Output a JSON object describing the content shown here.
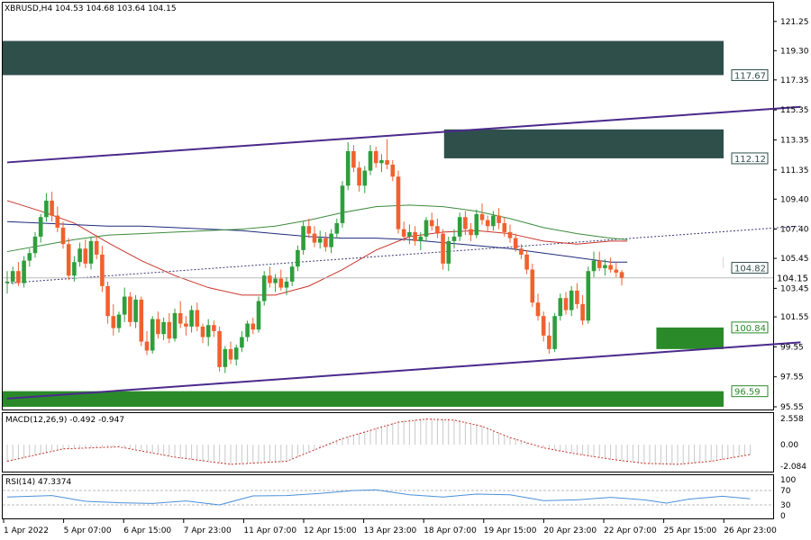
{
  "header": {
    "symbol_line": "XBRUSD,H4  104.53 104.68 103.64 104.15"
  },
  "macd": {
    "label": "MACD(12,26,9) -0.492 -0.947",
    "ticks": [
      "2.558",
      "0.00",
      "-2.084"
    ]
  },
  "rsi": {
    "label": "RSI(14) 47.3374",
    "ticks": [
      "100",
      "70",
      "30",
      "0"
    ]
  },
  "colors": {
    "up": "#2e9e3c",
    "down": "#f0612f",
    "supply_zone": "#2f4f4b",
    "demand_zone": "#2a8a2a",
    "channel": "#4b2a8c",
    "ma_red": "#c8352b",
    "ma_blue": "#1f2a7a",
    "ma_green": "#3c8a3c",
    "rsi_line": "#4a90d9"
  },
  "chart_data": {
    "type": "candlestick",
    "symbol": "XBRUSD",
    "timeframe": "H4",
    "ylim": [
      95.55,
      122.2
    ],
    "y_ticks": [
      "121.25",
      "119.30",
      "117.35",
      "115.35",
      "113.35",
      "111.35",
      "109.40",
      "107.40",
      "105.45",
      "103.45",
      "101.55",
      "99.55",
      "97.55",
      "95.55"
    ],
    "x_ticks": [
      "1 Apr 2022",
      "5 Apr 07:00",
      "6 Apr 15:00",
      "7 Apr 23:00",
      "11 Apr 07:00",
      "12 Apr 15:00",
      "13 Apr 23:00",
      "18 Apr 07:00",
      "19 Apr 15:00",
      "20 Apr 23:00",
      "22 Apr 07:00",
      "25 Apr 15:00",
      "26 Apr 23:00"
    ],
    "current_price": "104.15",
    "level_tags": [
      {
        "label": "117.67",
        "value": 117.67
      },
      {
        "label": "112.12",
        "value": 112.12
      },
      {
        "label": "104.82",
        "value": 104.82
      },
      {
        "label": "100.84",
        "value": 100.84
      },
      {
        "label": "96.59",
        "value": 96.59
      }
    ],
    "zones": [
      {
        "kind": "supply",
        "top": 119.95,
        "bottom": 117.67,
        "start_bar": 0,
        "end_bar": 133
      },
      {
        "kind": "supply",
        "top": 114.05,
        "bottom": 112.12,
        "start_bar": 79,
        "end_bar": 133
      },
      {
        "kind": "supply",
        "top": 105.55,
        "bottom": 104.82,
        "start_bar": 129,
        "end_bar": 133
      },
      {
        "kind": "demand",
        "top": 100.84,
        "bottom": 99.4,
        "start_bar": 117,
        "end_bar": 133
      },
      {
        "kind": "demand",
        "top": 96.59,
        "bottom": 95.55,
        "start_bar": 0,
        "end_bar": 133
      }
    ],
    "channel": {
      "upper": [
        [
          0,
          111.85
        ],
        [
          142,
          115.55
        ]
      ],
      "lower": [
        [
          0,
          96.1
        ],
        [
          142,
          99.85
        ]
      ],
      "mid_dotted": [
        [
          0,
          103.8
        ],
        [
          142,
          107.6
        ]
      ]
    },
    "candles": [
      [
        103.8,
        104.6,
        103.1,
        103.9
      ],
      [
        103.9,
        104.9,
        103.7,
        104.6
      ],
      [
        104.6,
        105.2,
        103.6,
        103.8
      ],
      [
        103.8,
        105.6,
        103.5,
        105.3
      ],
      [
        105.3,
        106.1,
        104.9,
        105.8
      ],
      [
        105.8,
        107.2,
        105.5,
        106.9
      ],
      [
        106.9,
        108.4,
        106.5,
        108.2
      ],
      [
        108.2,
        109.8,
        107.9,
        109.3
      ],
      [
        109.3,
        109.9,
        107.9,
        108.3
      ],
      [
        108.3,
        108.9,
        107.2,
        107.5
      ],
      [
        107.5,
        107.9,
        106.1,
        106.4
      ],
      [
        106.4,
        106.8,
        104.0,
        104.3
      ],
      [
        104.3,
        105.6,
        103.9,
        105.2
      ],
      [
        105.2,
        106.5,
        104.9,
        106.1
      ],
      [
        106.1,
        106.7,
        104.8,
        105.1
      ],
      [
        105.1,
        106.9,
        104.7,
        106.6
      ],
      [
        106.6,
        107.0,
        105.4,
        105.7
      ],
      [
        105.7,
        106.3,
        103.2,
        103.6
      ],
      [
        103.6,
        103.9,
        101.1,
        101.6
      ],
      [
        101.6,
        102.4,
        100.3,
        100.8
      ],
      [
        100.8,
        101.9,
        100.5,
        101.7
      ],
      [
        101.7,
        103.5,
        101.2,
        102.9
      ],
      [
        102.9,
        103.2,
        100.9,
        101.2
      ],
      [
        101.2,
        103.0,
        100.8,
        102.7
      ],
      [
        102.7,
        102.9,
        99.6,
        99.9
      ],
      [
        99.9,
        100.6,
        99.0,
        99.3
      ],
      [
        99.3,
        101.6,
        99.1,
        101.4
      ],
      [
        101.4,
        101.9,
        100.1,
        100.4
      ],
      [
        100.4,
        101.5,
        100.0,
        101.2
      ],
      [
        101.2,
        101.8,
        99.8,
        100.1
      ],
      [
        100.1,
        102.1,
        99.9,
        101.8
      ],
      [
        101.8,
        102.6,
        100.8,
        101.1
      ],
      [
        101.1,
        101.6,
        100.3,
        100.9
      ],
      [
        100.9,
        102.3,
        100.5,
        102.0
      ],
      [
        102.0,
        102.5,
        100.6,
        100.9
      ],
      [
        100.9,
        101.1,
        99.8,
        100.2
      ],
      [
        100.2,
        101.4,
        99.6,
        101.0
      ],
      [
        101.0,
        101.3,
        100.2,
        100.6
      ],
      [
        100.6,
        100.9,
        97.9,
        98.2
      ],
      [
        98.2,
        99.6,
        97.8,
        99.4
      ],
      [
        99.4,
        99.9,
        98.4,
        98.7
      ],
      [
        98.7,
        99.7,
        98.3,
        99.5
      ],
      [
        99.5,
        100.6,
        99.2,
        100.2
      ],
      [
        100.2,
        101.3,
        99.9,
        101.1
      ],
      [
        101.1,
        101.5,
        100.4,
        100.7
      ],
      [
        100.7,
        102.9,
        100.5,
        102.6
      ],
      [
        102.6,
        104.6,
        102.3,
        104.3
      ],
      [
        104.3,
        104.9,
        103.5,
        103.8
      ],
      [
        103.8,
        104.4,
        103.2,
        104.1
      ],
      [
        104.1,
        104.7,
        103.3,
        103.5
      ],
      [
        103.5,
        104.2,
        103.0,
        103.9
      ],
      [
        103.9,
        105.2,
        103.6,
        104.9
      ],
      [
        104.9,
        106.3,
        104.6,
        106.0
      ],
      [
        106.0,
        107.9,
        105.7,
        107.6
      ],
      [
        107.6,
        108.1,
        106.8,
        107.1
      ],
      [
        107.1,
        107.6,
        106.2,
        106.5
      ],
      [
        106.5,
        107.3,
        106.1,
        106.8
      ],
      [
        106.8,
        107.2,
        105.9,
        106.2
      ],
      [
        106.2,
        107.4,
        105.8,
        107.1
      ],
      [
        107.1,
        108.1,
        106.8,
        107.8
      ],
      [
        107.8,
        110.6,
        107.5,
        110.3
      ],
      [
        110.3,
        113.2,
        110.0,
        112.6
      ],
      [
        112.6,
        113.0,
        111.2,
        111.5
      ],
      [
        111.5,
        111.9,
        109.9,
        110.3
      ],
      [
        110.3,
        111.6,
        109.8,
        111.3
      ],
      [
        111.3,
        113.0,
        111.0,
        112.6
      ],
      [
        112.6,
        112.9,
        111.5,
        111.8
      ],
      [
        111.8,
        112.4,
        111.2,
        112.0
      ],
      [
        112.0,
        113.4,
        111.4,
        111.7
      ],
      [
        111.7,
        112.0,
        110.6,
        110.9
      ],
      [
        110.9,
        111.3,
        107.1,
        107.4
      ],
      [
        107.4,
        107.9,
        106.6,
        106.9
      ],
      [
        106.9,
        107.7,
        106.4,
        107.2
      ],
      [
        107.2,
        107.6,
        106.3,
        106.6
      ],
      [
        106.6,
        107.2,
        106.0,
        106.9
      ],
      [
        106.9,
        108.2,
        106.6,
        108.0
      ],
      [
        108.0,
        108.5,
        107.3,
        107.6
      ],
      [
        107.6,
        108.1,
        106.8,
        107.1
      ],
      [
        107.1,
        107.4,
        104.7,
        105.1
      ],
      [
        105.1,
        106.9,
        104.6,
        106.6
      ],
      [
        106.6,
        107.4,
        106.1,
        106.9
      ],
      [
        106.9,
        108.5,
        106.6,
        108.2
      ],
      [
        108.2,
        108.6,
        107.0,
        107.4
      ],
      [
        107.4,
        107.8,
        106.6,
        107.0
      ],
      [
        107.0,
        108.7,
        106.8,
        108.4
      ],
      [
        108.4,
        109.1,
        107.7,
        108.0
      ],
      [
        108.0,
        108.3,
        107.2,
        107.6
      ],
      [
        107.6,
        108.6,
        107.3,
        108.3
      ],
      [
        108.3,
        108.8,
        107.4,
        107.8
      ],
      [
        107.8,
        108.2,
        106.9,
        107.2
      ],
      [
        107.2,
        107.7,
        106.5,
        106.8
      ],
      [
        106.8,
        107.1,
        105.9,
        106.1
      ],
      [
        106.1,
        106.4,
        105.4,
        105.7
      ],
      [
        105.7,
        106.0,
        104.4,
        104.7
      ],
      [
        104.7,
        105.1,
        102.2,
        102.5
      ],
      [
        102.5,
        103.1,
        101.3,
        101.6
      ],
      [
        101.6,
        101.9,
        99.9,
        100.3
      ],
      [
        100.3,
        101.2,
        99.1,
        99.4
      ],
      [
        99.4,
        101.8,
        99.2,
        101.6
      ],
      [
        101.6,
        103.1,
        101.3,
        102.8
      ],
      [
        102.8,
        103.2,
        101.7,
        102.0
      ],
      [
        102.0,
        103.6,
        101.6,
        103.3
      ],
      [
        103.3,
        103.8,
        102.1,
        102.4
      ],
      [
        102.4,
        103.0,
        101.0,
        101.3
      ],
      [
        101.3,
        104.9,
        101.1,
        104.6
      ],
      [
        104.6,
        105.9,
        104.2,
        105.3
      ],
      [
        105.3,
        105.9,
        104.6,
        104.8
      ],
      [
        104.8,
        105.4,
        104.3,
        105.0
      ],
      [
        105.0,
        105.5,
        104.5,
        104.7
      ],
      [
        104.7,
        105.2,
        104.2,
        104.5
      ],
      [
        104.53,
        104.68,
        103.64,
        104.15
      ]
    ],
    "moving_averages": [
      {
        "color": "red",
        "points": [
          [
            0,
            109.3
          ],
          [
            6,
            108.6
          ],
          [
            12,
            107.8
          ],
          [
            18,
            106.5
          ],
          [
            24,
            105.3
          ],
          [
            30,
            104.3
          ],
          [
            36,
            103.5
          ],
          [
            42,
            103.0
          ],
          [
            48,
            103.0
          ],
          [
            54,
            103.6
          ],
          [
            60,
            104.7
          ],
          [
            66,
            106.0
          ],
          [
            72,
            106.9
          ],
          [
            78,
            107.2
          ],
          [
            84,
            107.3
          ],
          [
            90,
            107.1
          ],
          [
            96,
            106.6
          ],
          [
            102,
            106.4
          ],
          [
            108,
            106.6
          ],
          [
            111,
            106.6
          ]
        ]
      },
      {
        "color": "blue",
        "points": [
          [
            0,
            107.9
          ],
          [
            6,
            107.8
          ],
          [
            12,
            107.7
          ],
          [
            18,
            107.6
          ],
          [
            24,
            107.6
          ],
          [
            30,
            107.5
          ],
          [
            36,
            107.4
          ],
          [
            42,
            107.3
          ],
          [
            48,
            107.1
          ],
          [
            54,
            106.9
          ],
          [
            60,
            106.8
          ],
          [
            66,
            106.8
          ],
          [
            72,
            106.7
          ],
          [
            78,
            106.5
          ],
          [
            84,
            106.3
          ],
          [
            90,
            106.1
          ],
          [
            96,
            105.8
          ],
          [
            102,
            105.5
          ],
          [
            108,
            105.2
          ],
          [
            111,
            105.2
          ]
        ]
      },
      {
        "color": "green",
        "points": [
          [
            0,
            105.9
          ],
          [
            6,
            106.3
          ],
          [
            12,
            106.7
          ],
          [
            18,
            107.0
          ],
          [
            24,
            107.1
          ],
          [
            30,
            107.2
          ],
          [
            36,
            107.3
          ],
          [
            42,
            107.4
          ],
          [
            48,
            107.6
          ],
          [
            54,
            108.0
          ],
          [
            60,
            108.5
          ],
          [
            66,
            108.9
          ],
          [
            72,
            109.0
          ],
          [
            78,
            108.9
          ],
          [
            84,
            108.6
          ],
          [
            90,
            108.1
          ],
          [
            96,
            107.5
          ],
          [
            102,
            107.1
          ],
          [
            108,
            106.8
          ],
          [
            111,
            106.7
          ]
        ]
      }
    ],
    "macd": {
      "ylim": [
        -2.084,
        2.558
      ],
      "signal": [
        [
          0,
          -1.6
        ],
        [
          10,
          -0.4
        ],
        [
          20,
          -0.2
        ],
        [
          30,
          -1.2
        ],
        [
          40,
          -1.9
        ],
        [
          50,
          -1.6
        ],
        [
          60,
          0.6
        ],
        [
          70,
          2.2
        ],
        [
          75,
          2.5
        ],
        [
          80,
          2.4
        ],
        [
          85,
          1.8
        ],
        [
          90,
          0.7
        ],
        [
          96,
          -0.3
        ],
        [
          102,
          -0.9
        ],
        [
          108,
          -1.4
        ],
        [
          114,
          -1.8
        ],
        [
          120,
          -1.9
        ],
        [
          126,
          -1.6
        ],
        [
          133,
          -0.95
        ]
      ]
    },
    "rsi": {
      "ylim": [
        0,
        100
      ],
      "values": [
        [
          0,
          52
        ],
        [
          8,
          56
        ],
        [
          14,
          40
        ],
        [
          20,
          36
        ],
        [
          26,
          34
        ],
        [
          32,
          41
        ],
        [
          38,
          30
        ],
        [
          44,
          55
        ],
        [
          50,
          56
        ],
        [
          56,
          62
        ],
        [
          62,
          70
        ],
        [
          66,
          72
        ],
        [
          72,
          58
        ],
        [
          78,
          52
        ],
        [
          84,
          60
        ],
        [
          90,
          58
        ],
        [
          96,
          42
        ],
        [
          102,
          44
        ],
        [
          108,
          51
        ],
        [
          114,
          44
        ],
        [
          118,
          35
        ],
        [
          122,
          46
        ],
        [
          128,
          54
        ],
        [
          133,
          47
        ]
      ]
    }
  }
}
